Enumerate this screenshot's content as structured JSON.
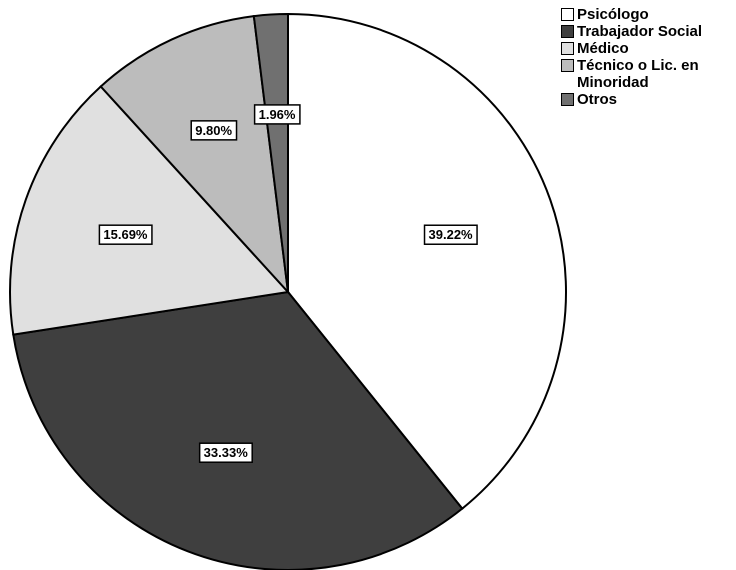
{
  "chart_data": {
    "type": "pie",
    "title": "",
    "categories": [
      "Psicólogo",
      "Trabajador Social",
      "Médico",
      "Técnico o Lic. en Minoridad",
      "Otros"
    ],
    "values": [
      39.22,
      33.33,
      15.69,
      9.8,
      1.96
    ],
    "labels": [
      "39.22%",
      "33.33%",
      "15.69%",
      "9.80%",
      "1.96%"
    ],
    "colors": [
      "#ffffff",
      "#3f3f3f",
      "#e0e0e0",
      "#bcbcbc",
      "#707070"
    ],
    "start_angle_deg": 0,
    "direction": "clockwise",
    "legend": {
      "placement": "top-right",
      "items": [
        {
          "label": "Psicólogo",
          "color": "#ffffff"
        },
        {
          "label": "Trabajador Social",
          "color": "#3f3f3f"
        },
        {
          "label": "Médico",
          "color": "#e0e0e0"
        },
        {
          "label": "Técnico o Lic. en\nMinoridad",
          "color": "#bcbcbc"
        },
        {
          "label": "Otros",
          "color": "#707070"
        }
      ]
    }
  }
}
